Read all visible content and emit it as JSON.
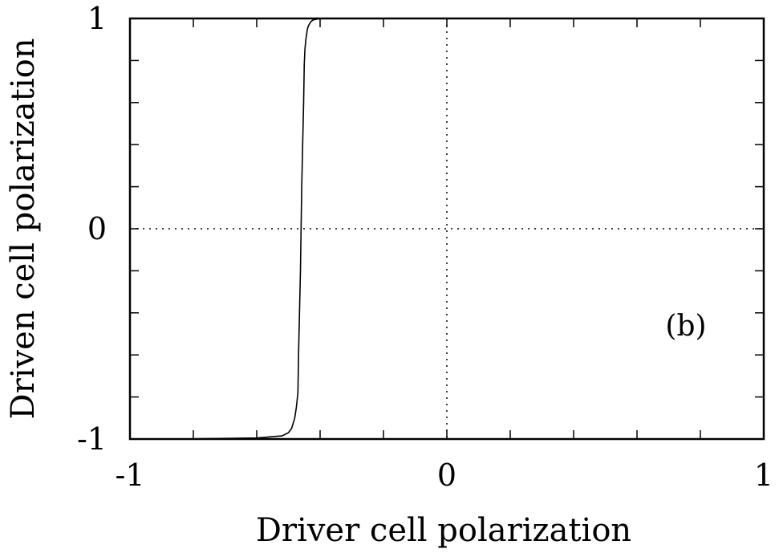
{
  "chart_data": {
    "type": "line",
    "panel_label": "(b)",
    "xlabel": "Driver cell polarization",
    "ylabel": "Driven cell polarization",
    "xlim": [
      -1,
      1
    ],
    "ylim": [
      -1,
      1
    ],
    "xticks": [
      {
        "value": -1,
        "label": "-1"
      },
      {
        "value": 0,
        "label": "0"
      },
      {
        "value": 1,
        "label": "1"
      }
    ],
    "yticks": [
      {
        "value": -1,
        "label": "-1"
      },
      {
        "value": 0,
        "label": "0"
      },
      {
        "value": 1,
        "label": "1"
      }
    ],
    "minor_tick_step": 0.2,
    "reference_lines": {
      "x": 0,
      "y": 0,
      "style": "dotted"
    },
    "grid": false,
    "series": [
      {
        "x": [
          -1.0,
          -0.8,
          -0.6,
          -0.52,
          -0.5,
          -0.49,
          -0.48,
          -0.475,
          -0.47,
          -0.468,
          -0.465,
          -0.462,
          -0.46,
          -0.458,
          -0.455,
          -0.452,
          -0.45,
          -0.448,
          -0.445,
          -0.442,
          -0.44,
          -0.437,
          -0.433,
          -0.43,
          -0.425,
          -0.42,
          -0.41,
          -0.4,
          -0.38,
          -0.35,
          -0.3,
          0.0,
          0.5,
          1.0
        ],
        "y": [
          -1.0,
          -0.999,
          -0.995,
          -0.985,
          -0.97,
          -0.95,
          -0.9,
          -0.85,
          -0.78,
          -0.6,
          -0.4,
          -0.2,
          0.0,
          0.2,
          0.4,
          0.6,
          0.78,
          0.85,
          0.9,
          0.93,
          0.95,
          0.965,
          0.975,
          0.983,
          0.99,
          0.994,
          0.997,
          0.999,
          1.0,
          1.0,
          1.0,
          1.0,
          1.0,
          1.0
        ]
      }
    ]
  }
}
